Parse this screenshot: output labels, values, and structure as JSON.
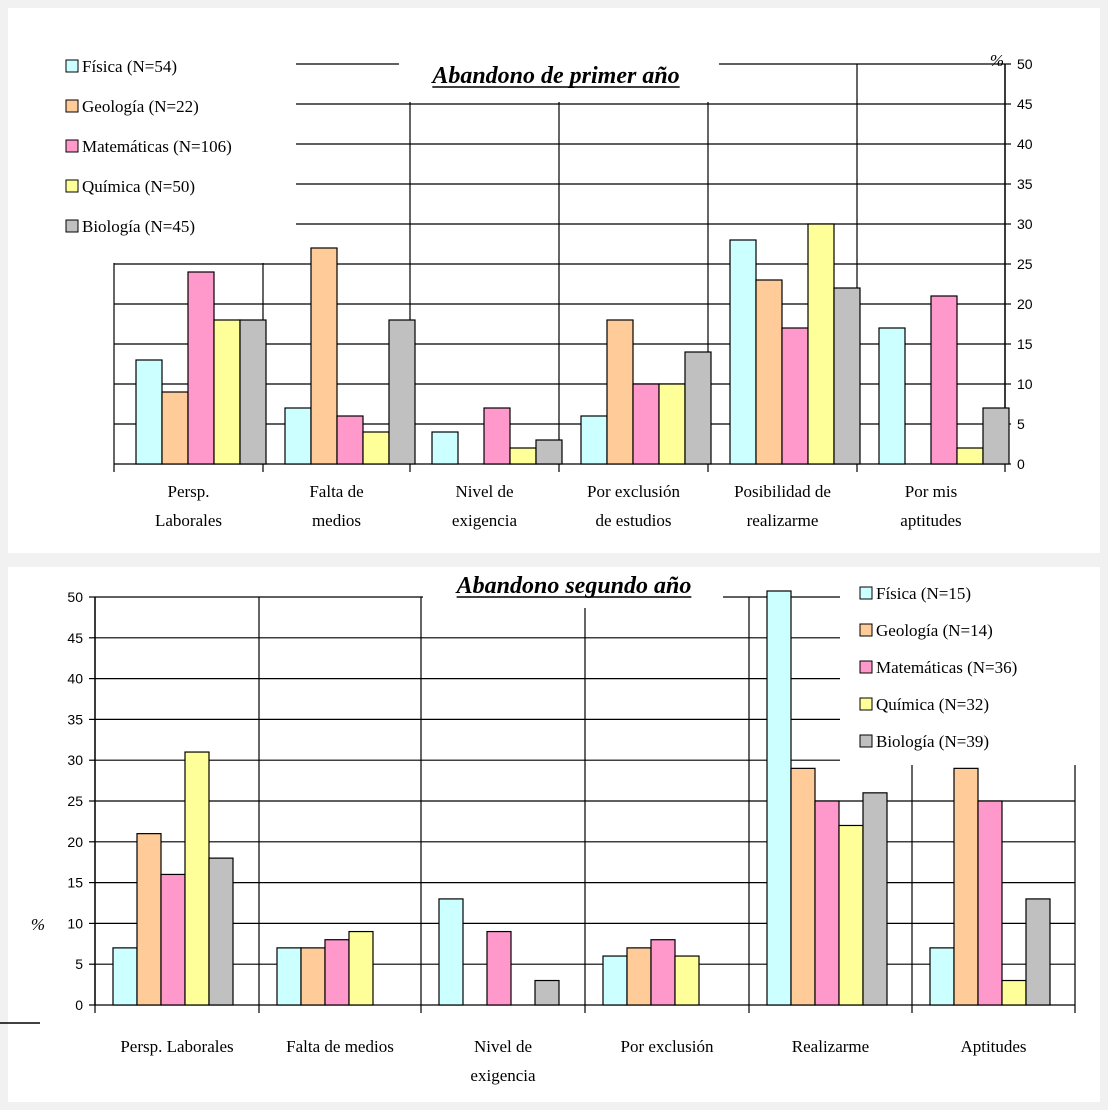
{
  "colors": {
    "background": "#f1f1f1",
    "plot": "#ffffff",
    "series": [
      "#ccffff",
      "#ffcc99",
      "#ff99cc",
      "#ffff99",
      "#c0c0c0"
    ]
  },
  "chart_data": [
    {
      "type": "bar",
      "title": "Abandono de primer año",
      "unit_label": "%",
      "ylim": [
        0,
        50
      ],
      "y_ticks": [
        "0",
        "5",
        "10",
        "15",
        "20",
        "25",
        "30",
        "35",
        "40",
        "45",
        "50"
      ],
      "y_axis_side": "right",
      "grid": true,
      "legend_position": "top-left",
      "categories": [
        [
          "Persp.",
          "Laborales"
        ],
        [
          "Falta de",
          "medios"
        ],
        [
          "Nivel de",
          "exigencia"
        ],
        [
          "Por exclusión",
          "de estudios"
        ],
        [
          "Posibilidad de",
          "realizarme"
        ],
        [
          "Por mis",
          "aptitudes"
        ]
      ],
      "series": [
        {
          "name": "Física (N=54)",
          "values": [
            13,
            7,
            4,
            6,
            28,
            17
          ]
        },
        {
          "name": "Geología (N=22)",
          "values": [
            9,
            27,
            0,
            18,
            23,
            0
          ]
        },
        {
          "name": "Matemáticas (N=106)",
          "values": [
            24,
            6,
            7,
            10,
            17,
            21
          ]
        },
        {
          "name": "Química (N=50)",
          "values": [
            18,
            4,
            2,
            10,
            30,
            2
          ]
        },
        {
          "name": "Biología (N=45)",
          "values": [
            18,
            18,
            3,
            14,
            22,
            7
          ]
        }
      ]
    },
    {
      "type": "bar",
      "title": "Abandono segundo año",
      "unit_label": "%",
      "ylim": [
        0,
        50
      ],
      "y_ticks": [
        "0",
        "5",
        "10",
        "15",
        "20",
        "25",
        "30",
        "35",
        "40",
        "45",
        "50"
      ],
      "y_axis_side": "left",
      "grid": true,
      "legend_position": "top-right",
      "categories": [
        [
          "Persp. Laborales"
        ],
        [
          "Falta de medios"
        ],
        [
          "Nivel de",
          "exigencia"
        ],
        [
          "Por exclusión"
        ],
        [
          "Realizarme"
        ],
        [
          "Aptitudes"
        ]
      ],
      "series": [
        {
          "name": "Física (N=15)",
          "values": [
            7,
            7,
            13,
            6,
            51,
            7
          ]
        },
        {
          "name": "Geología (N=14)",
          "values": [
            21,
            7,
            0,
            7,
            29,
            29
          ]
        },
        {
          "name": "Matemáticas (N=36)",
          "values": [
            16,
            8,
            9,
            8,
            25,
            25
          ]
        },
        {
          "name": "Química (N=32)",
          "values": [
            31,
            9,
            0,
            6,
            22,
            3
          ]
        },
        {
          "name": "Biología (N=39)",
          "values": [
            18,
            0,
            3,
            0,
            26,
            13
          ]
        }
      ]
    }
  ]
}
